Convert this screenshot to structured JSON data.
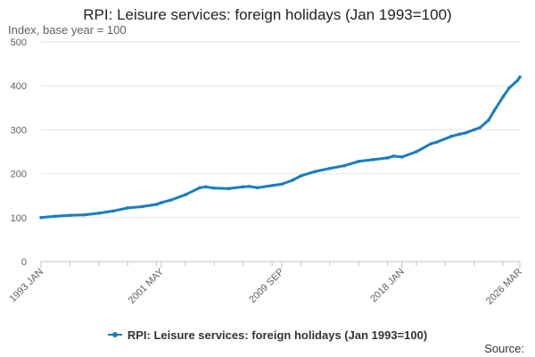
{
  "chart_data": {
    "type": "line",
    "title": "RPI: Leisure services: foreign holidays (Jan 1993=100)",
    "ylabel": "Index, base year = 100",
    "ylim": [
      0,
      500
    ],
    "y_ticks": [
      0,
      100,
      200,
      300,
      400,
      500
    ],
    "x_tick_labels": [
      "1993 JAN",
      "2001 MAY",
      "2009 SEP",
      "2018 JAN",
      "2026 MAR"
    ],
    "grid": true,
    "legend_position": "bottom",
    "source_label": "Source:",
    "series": [
      {
        "name": "RPI: Leisure services: foreign holidays (Jan 1993=100)",
        "color": "#1a7dbf",
        "points": [
          [
            "1993-01",
            100
          ],
          [
            "1994-01",
            103
          ],
          [
            "1995-01",
            105
          ],
          [
            "1996-01",
            106
          ],
          [
            "1997-01",
            110
          ],
          [
            "1998-01",
            115
          ],
          [
            "1999-01",
            122
          ],
          [
            "2000-01",
            125
          ],
          [
            "2001-01",
            130
          ],
          [
            "2001-05",
            134
          ],
          [
            "2002-01",
            140
          ],
          [
            "2003-01",
            152
          ],
          [
            "2004-01",
            168
          ],
          [
            "2004-06",
            170
          ],
          [
            "2005-01",
            167
          ],
          [
            "2006-01",
            166
          ],
          [
            "2007-01",
            170
          ],
          [
            "2007-06",
            171
          ],
          [
            "2008-01",
            168
          ],
          [
            "2009-01",
            173
          ],
          [
            "2009-09",
            176
          ],
          [
            "2010-06",
            185
          ],
          [
            "2011-01",
            195
          ],
          [
            "2012-01",
            205
          ],
          [
            "2013-01",
            212
          ],
          [
            "2014-01",
            218
          ],
          [
            "2015-01",
            228
          ],
          [
            "2016-01",
            232
          ],
          [
            "2017-01",
            236
          ],
          [
            "2017-06",
            240
          ],
          [
            "2018-01",
            238
          ],
          [
            "2019-01",
            250
          ],
          [
            "2020-01",
            268
          ],
          [
            "2020-06",
            272
          ],
          [
            "2021-06",
            285
          ],
          [
            "2022-01",
            290
          ],
          [
            "2022-06",
            293
          ],
          [
            "2023-01",
            300
          ],
          [
            "2023-06",
            305
          ],
          [
            "2024-01",
            322
          ],
          [
            "2024-06",
            345
          ],
          [
            "2025-01",
            375
          ],
          [
            "2025-06",
            395
          ],
          [
            "2026-01",
            412
          ],
          [
            "2026-03",
            420
          ]
        ]
      }
    ]
  }
}
